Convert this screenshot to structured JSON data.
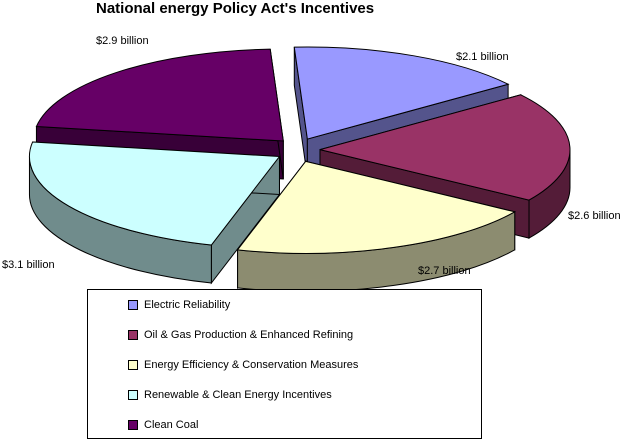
{
  "chart_data": {
    "type": "pie",
    "title": "National energy Policy Act's Incentives",
    "slices": [
      {
        "label": "Electric Reliability",
        "value": 2.1,
        "display": "$2.1 billion",
        "color": "#9999ff"
      },
      {
        "label": "Oil & Gas Production & Enhanced Refining",
        "value": 2.6,
        "display": "$2.6 billion",
        "color": "#993366"
      },
      {
        "label": "Energy Efficiency & Conservation Measures",
        "value": 2.7,
        "display": "$2.7 billion",
        "color": "#ffffcc"
      },
      {
        "label": "Renewable & Clean Energy Incentives",
        "value": 3.1,
        "display": "$3.1 billion",
        "color": "#ccffff"
      },
      {
        "label": "Clean Coal",
        "value": 2.9,
        "display": "$2.9 billion",
        "color": "#660066"
      }
    ],
    "style": "3d-exploded",
    "legend_position": "bottom"
  }
}
